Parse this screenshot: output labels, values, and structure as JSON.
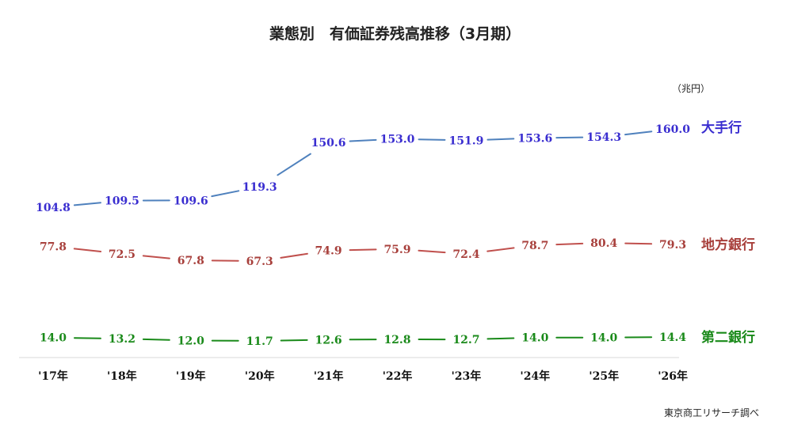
{
  "chart_data": {
    "type": "line",
    "title": "業態別　有価証券残高推移（3月期）",
    "unit_label": "（兆円）",
    "source": "東京商工リサーチ調べ",
    "categories": [
      "'17年",
      "'18年",
      "'19年",
      "'20年",
      "'21年",
      "'22年",
      "'23年",
      "'24年",
      "'25年",
      "'26年"
    ],
    "xlabel": "",
    "ylabel": "",
    "grid": false,
    "legend": "right",
    "series": [
      {
        "name": "大手行",
        "line_color": "#4f81bd",
        "label_color": "#3a2ed0",
        "values": [
          104.8,
          109.5,
          109.6,
          119.3,
          150.6,
          153.0,
          151.9,
          153.6,
          154.3,
          160.0
        ],
        "labels": [
          "104.8",
          "109.5",
          "109.6",
          "119.3",
          "150.6",
          "153.0",
          "151.9",
          "153.6",
          "154.3",
          "160.0"
        ]
      },
      {
        "name": "地方銀行",
        "line_color": "#c0504d",
        "label_color": "#a8403c",
        "values": [
          77.8,
          72.5,
          67.8,
          67.3,
          74.9,
          75.9,
          72.4,
          78.7,
          80.4,
          79.3
        ],
        "labels": [
          "77.8",
          "72.5",
          "67.8",
          "67.3",
          "74.9",
          "75.9",
          "72.4",
          "78.7",
          "80.4",
          "79.3"
        ]
      },
      {
        "name": "第二銀行",
        "line_color": "#1a8a1a",
        "label_color": "#1a8a1a",
        "values": [
          14.0,
          13.2,
          12.0,
          11.7,
          12.6,
          12.8,
          12.7,
          14.0,
          14.0,
          14.4
        ],
        "labels": [
          "14.0",
          "13.2",
          "12.0",
          "11.7",
          "12.6",
          "12.8",
          "12.7",
          "14.0",
          "14.0",
          "14.4"
        ]
      }
    ]
  }
}
